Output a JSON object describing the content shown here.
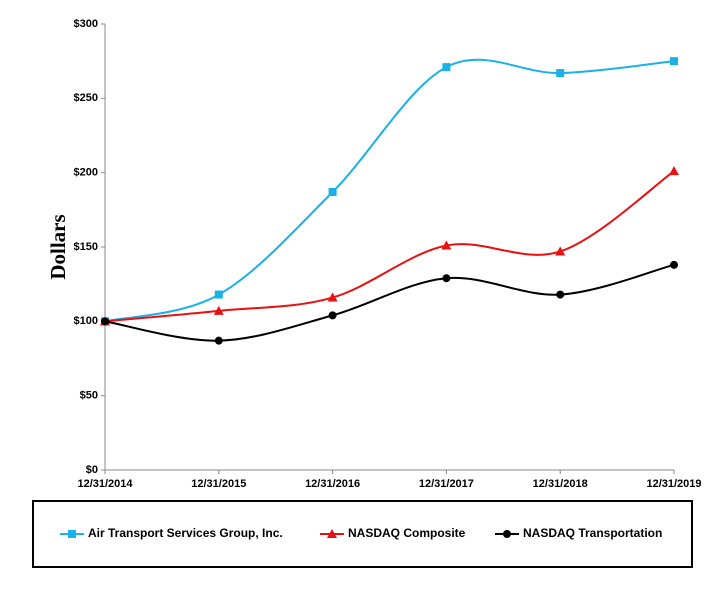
{
  "chart_data": {
    "type": "line",
    "y_label": "Dollars",
    "categories": [
      "12/31/2014",
      "12/31/2015",
      "12/31/2016",
      "12/31/2017",
      "12/31/2018",
      "12/31/2019"
    ],
    "series": [
      {
        "name": "Air Transport Services Group, Inc.",
        "color": "#1ab0e8",
        "marker": "square",
        "values": [
          100,
          118,
          187,
          271,
          267,
          275
        ]
      },
      {
        "name": "NASDAQ Composite",
        "color": "#e81010",
        "marker": "triangle",
        "values": [
          100,
          107,
          116,
          151,
          147,
          201
        ]
      },
      {
        "name": "NASDAQ Transportation",
        "color": "#000000",
        "marker": "circle",
        "values": [
          100,
          87,
          104,
          129,
          118,
          138
        ]
      }
    ],
    "ylim": [
      0,
      300
    ],
    "yticks": [
      {
        "value": 0,
        "label": "$0"
      },
      {
        "value": 50,
        "label": "$50"
      },
      {
        "value": 100,
        "label": "$100"
      },
      {
        "value": 150,
        "label": "$150"
      },
      {
        "value": 200,
        "label": "$200"
      },
      {
        "value": 250,
        "label": "$250"
      },
      {
        "value": 300,
        "label": "$300"
      }
    ],
    "grid": false,
    "legend": "bottom"
  }
}
